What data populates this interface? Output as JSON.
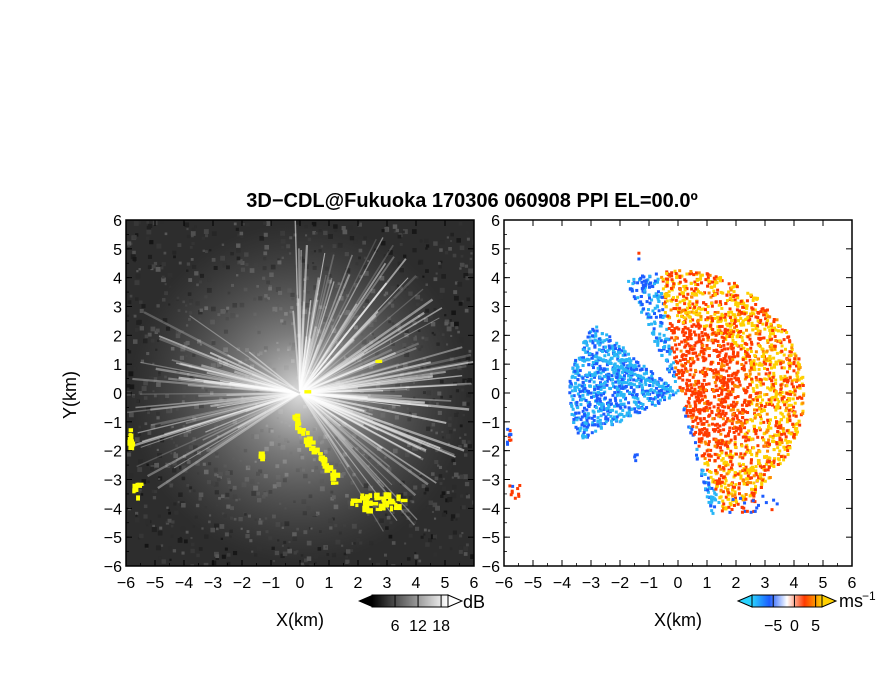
{
  "figure": {
    "title": "3D−CDL@Fukuoka 170306 060908 PPI EL=00.0º",
    "xlabel": "X(km)",
    "ylabel": "Y(km)"
  },
  "colors": {
    "left_background": "#2d2d2d",
    "echo_highlight": "#ffff00",
    "velocity_negative": "#1c5cff",
    "velocity_negative_light": "#29b6f6",
    "velocity_positive": "#ff3a00",
    "velocity_positive_light": "#ffd000"
  },
  "chart_data": [
    {
      "type": "heatmap",
      "panel": "left",
      "quantity": "SNR",
      "xlabel": "X(km)",
      "ylabel": "Y(km)",
      "xlim": [
        -6,
        6
      ],
      "ylim": [
        -6,
        6
      ],
      "x_ticks": [
        -6,
        -5,
        -4,
        -3,
        -2,
        -1,
        0,
        1,
        2,
        3,
        4,
        5,
        6
      ],
      "y_ticks": [
        -6,
        -5,
        -4,
        -3,
        -2,
        -1,
        0,
        1,
        2,
        3,
        4,
        5,
        6
      ],
      "colorbar": {
        "unit": "dB",
        "ticks": [
          6,
          12,
          18
        ],
        "colormap": "grayscale"
      }
    },
    {
      "type": "heatmap",
      "panel": "right",
      "quantity": "Doppler velocity",
      "xlabel": "X(km)",
      "ylabel": "",
      "xlim": [
        -6,
        6
      ],
      "ylim": [
        -6,
        6
      ],
      "x_ticks": [
        -6,
        -5,
        -4,
        -3,
        -2,
        -1,
        0,
        1,
        2,
        3,
        4,
        5,
        6
      ],
      "y_ticks": [
        -6,
        -5,
        -4,
        -3,
        -2,
        -1,
        0,
        1,
        2,
        3,
        4,
        5,
        6
      ],
      "colorbar": {
        "unit": "ms",
        "unit_exponent": "−1",
        "ticks": [
          -5,
          0,
          5
        ],
        "colormap": "blue-white-red"
      }
    }
  ]
}
